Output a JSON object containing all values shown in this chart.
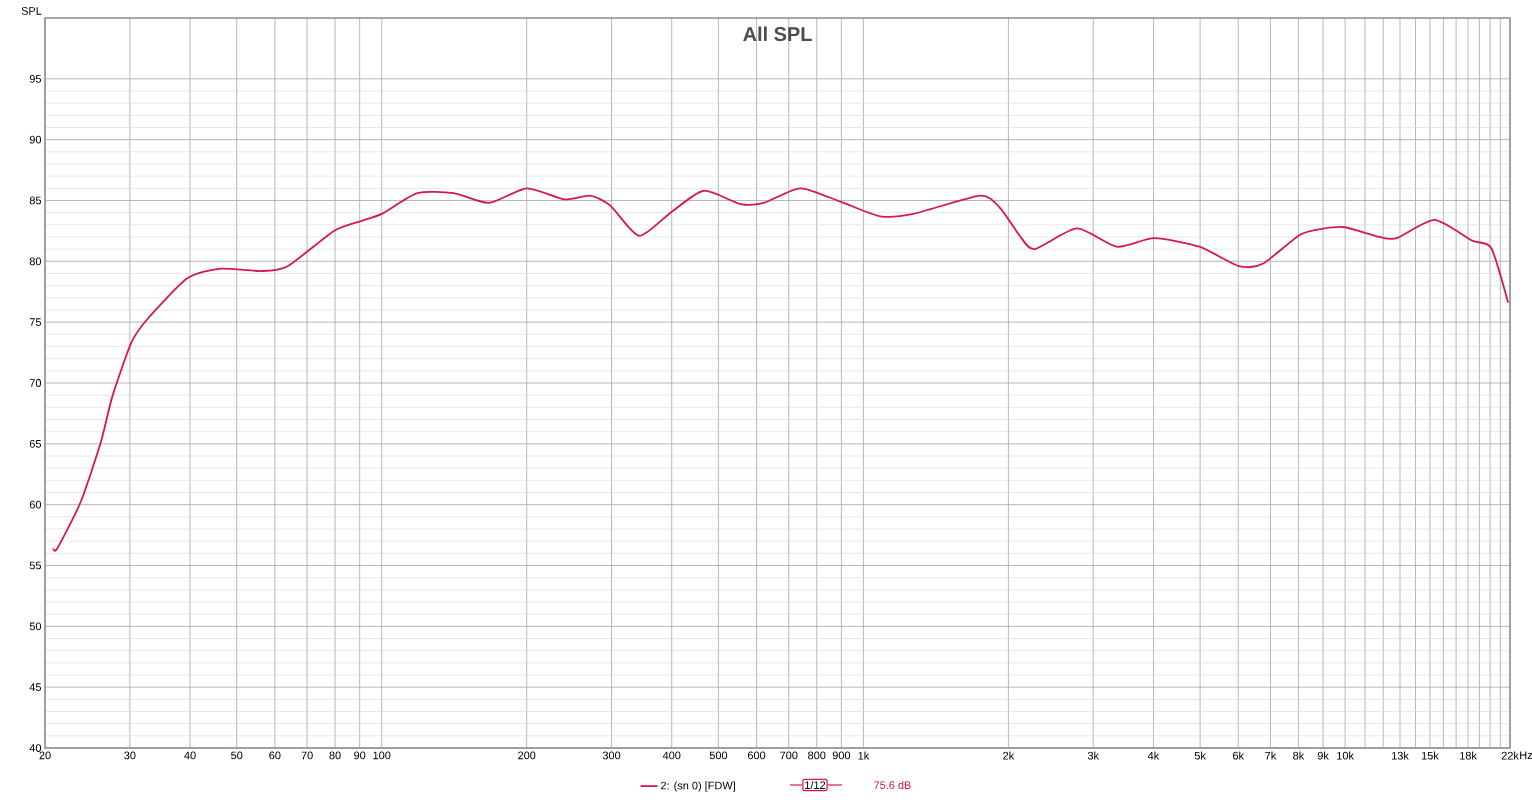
{
  "chart_data": {
    "type": "line",
    "title": "All SPL",
    "ylabel": "SPL",
    "log": "x",
    "grid": true,
    "legend": "bottom",
    "marker": "none",
    "line_style": "solid",
    "xlim": [
      20,
      22000
    ],
    "ylim": [
      40,
      100
    ],
    "xticks": [
      20,
      30,
      40,
      50,
      60,
      70,
      80,
      90,
      100,
      200,
      300,
      400,
      500,
      600,
      700,
      800,
      900,
      {
        "value": 1000,
        "label": "1k"
      },
      {
        "value": 2000,
        "label": "2k"
      },
      {
        "value": 3000,
        "label": "3k"
      },
      {
        "value": 4000,
        "label": "4k"
      },
      {
        "value": 5000,
        "label": "5k"
      },
      {
        "value": 6000,
        "label": "6k"
      },
      {
        "value": 7000,
        "label": "7k"
      },
      {
        "value": 8000,
        "label": "8k"
      },
      {
        "value": 9000,
        "label": "9k"
      },
      {
        "value": 10000,
        "label": "10k"
      },
      {
        "value": 11000,
        "label": null
      },
      {
        "value": 12000,
        "label": null
      },
      {
        "value": 13000,
        "label": "13k"
      },
      {
        "value": 14000,
        "label": null
      },
      {
        "value": 15000,
        "label": "15k"
      },
      {
        "value": 16000,
        "label": null
      },
      {
        "value": 17000,
        "label": null
      },
      {
        "value": 18000,
        "label": "18k"
      },
      {
        "value": 19000,
        "label": null
      },
      {
        "value": 20000,
        "label": null
      },
      {
        "value": 21000,
        "label": null
      },
      {
        "value": 22000,
        "label": "22k"
      }
    ],
    "xlabel": "Hz",
    "yticks": [
      40,
      45,
      50,
      55,
      60,
      65,
      70,
      75,
      80,
      85,
      90,
      95
    ],
    "annotations": [
      "1/12",
      "75.6 dB"
    ],
    "x": [
      20.8,
      21.2,
      23.7,
      26.1,
      27.6,
      30.2,
      32.7,
      39.5,
      46.3,
      56.1,
      63.8,
      79.6,
      90.5,
      100,
      118.6,
      141,
      167,
      200,
      239,
      271,
      298,
      342,
      398,
      466,
      556,
      621,
      740,
      896,
      1084,
      1270,
      1748,
      1921,
      2111,
      2265,
      2775,
      3358,
      4016,
      4983,
      6019,
      6746,
      8076,
      9053,
      9996,
      11780,
      12800,
      15330,
      18360,
      20100,
      21800
    ],
    "series": [
      {
        "name": "2: (sn 0) [FDW]",
        "color": "#d6184f",
        "values": [
          56.4,
          56.4,
          60.2,
          65.1,
          68.9,
          73.3,
          75.3,
          78.6,
          79.4,
          79.2,
          79.6,
          82.5,
          83.3,
          83.9,
          85.6,
          85.6,
          84.8,
          86.0,
          85.1,
          85.4,
          84.6,
          82.1,
          84.0,
          85.8,
          84.7,
          84.8,
          86.0,
          84.9,
          83.7,
          83.9,
          85.4,
          84.4,
          82.1,
          81.0,
          82.7,
          81.2,
          81.9,
          81.2,
          79.6,
          79.8,
          82.2,
          82.7,
          82.8,
          82.0,
          81.9,
          83.4,
          81.7,
          81.1,
          76.6
        ]
      }
    ]
  }
}
